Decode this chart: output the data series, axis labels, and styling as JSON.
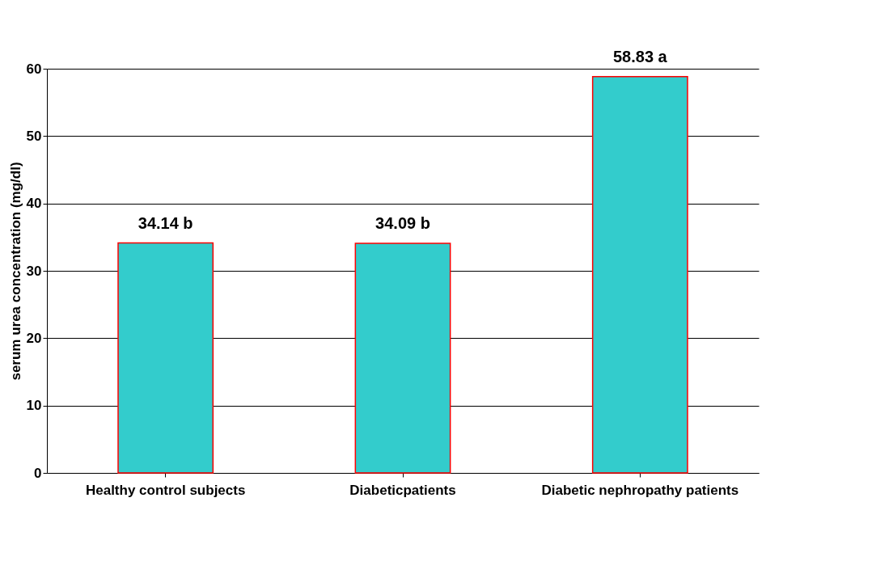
{
  "chart_data": {
    "type": "bar",
    "ylabel": "serum urea concentration (mg/dl)",
    "categories": [
      "Healthy control subjects",
      "Diabeticpatients",
      "Diabetic nephropathy patients"
    ],
    "values": [
      34.14,
      34.09,
      58.83
    ],
    "value_labels": [
      "34.14 b",
      "34.09 b",
      "58.83 a"
    ],
    "color": "#33cccc",
    "ylim": [
      0,
      60
    ],
    "yticks": [
      0,
      10,
      20,
      30,
      40,
      50,
      60
    ],
    "grid": "y"
  }
}
